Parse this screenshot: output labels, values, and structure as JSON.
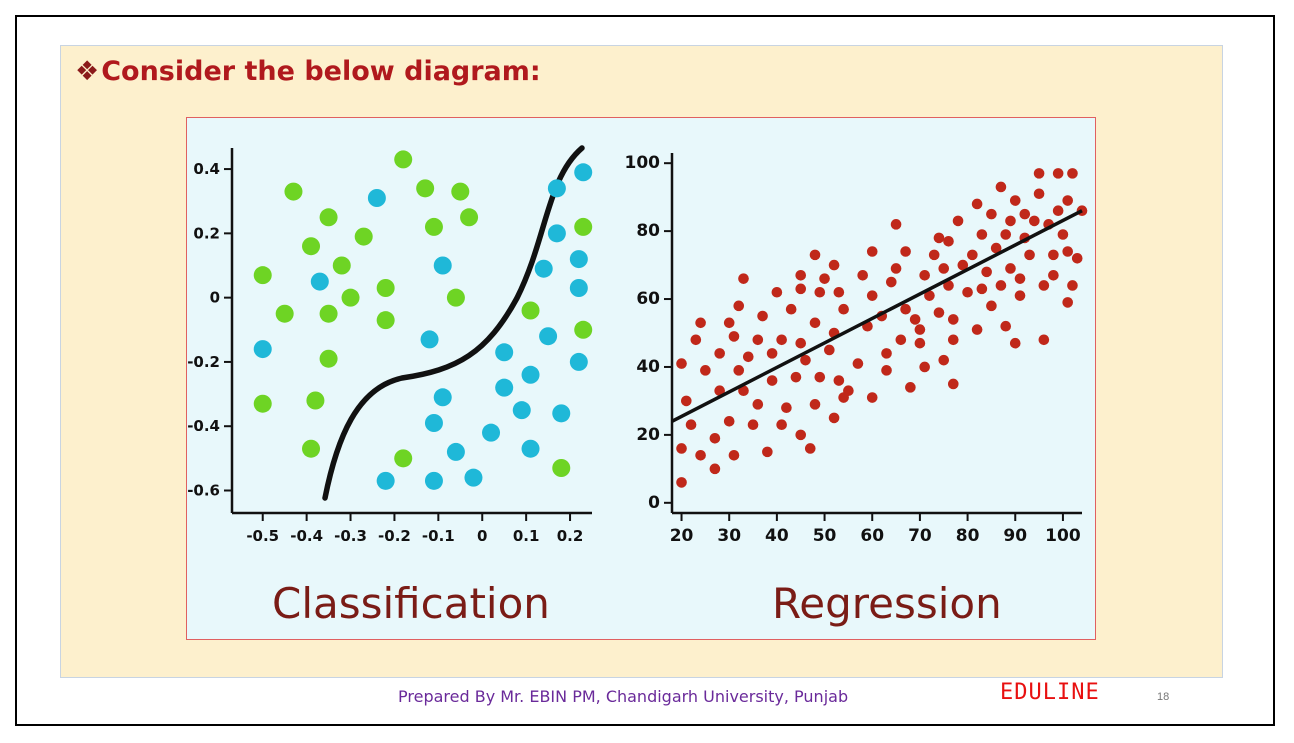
{
  "slide": {
    "bullet": "❖",
    "heading": "Consider the below diagram:",
    "footer": "Prepared By Mr. EBIN PM, Chandigarh University, Punjab",
    "brand": "EDULINE",
    "page_number": "18"
  },
  "chart_data": [
    {
      "type": "scatter",
      "caption": "Classification",
      "xlim": [
        -0.57,
        0.25
      ],
      "ylim": [
        -0.67,
        0.45
      ],
      "xticks": [
        "-0.5",
        "-0.4",
        "-0.3",
        "-0.2",
        "-0.1",
        "0",
        "0.1",
        "0.2"
      ],
      "xtick_values": [
        -0.5,
        -0.4,
        -0.3,
        -0.2,
        -0.1,
        0,
        0.1,
        0.2
      ],
      "yticks": [
        "0.4",
        "0.2",
        "0",
        "-0.2",
        "-0.4",
        "-0.6"
      ],
      "ytick_values": [
        0.4,
        0.2,
        0,
        -0.2,
        -0.4,
        -0.6
      ],
      "grid": false,
      "colors": {
        "class_a": "#6ed424",
        "class_b": "#1fb8d8",
        "boundary": "#111111"
      },
      "series": [
        {
          "color": "#6ed424",
          "points": [
            [
              -0.18,
              0.43
            ],
            [
              -0.43,
              0.33
            ],
            [
              -0.13,
              0.34
            ],
            [
              -0.05,
              0.33
            ],
            [
              -0.35,
              0.25
            ],
            [
              -0.11,
              0.22
            ],
            [
              -0.03,
              0.25
            ],
            [
              -0.39,
              0.16
            ],
            [
              -0.27,
              0.19
            ],
            [
              -0.5,
              0.07
            ],
            [
              -0.32,
              0.1
            ],
            [
              -0.3,
              0.0
            ],
            [
              -0.22,
              0.03
            ],
            [
              -0.06,
              0.0
            ],
            [
              -0.45,
              -0.05
            ],
            [
              -0.35,
              -0.05
            ],
            [
              -0.22,
              -0.07
            ],
            [
              0.11,
              -0.04
            ],
            [
              -0.35,
              -0.19
            ],
            [
              -0.5,
              -0.33
            ],
            [
              -0.38,
              -0.32
            ],
            [
              -0.39,
              -0.47
            ],
            [
              -0.18,
              -0.5
            ],
            [
              0.23,
              0.22
            ],
            [
              0.23,
              -0.1
            ],
            [
              0.18,
              -0.53
            ]
          ]
        },
        {
          "color": "#1fb8d8",
          "points": [
            [
              -0.24,
              0.31
            ],
            [
              0.23,
              0.39
            ],
            [
              0.17,
              0.34
            ],
            [
              0.17,
              0.2
            ],
            [
              -0.09,
              0.1
            ],
            [
              0.14,
              0.09
            ],
            [
              0.22,
              0.12
            ],
            [
              -0.37,
              0.05
            ],
            [
              0.22,
              0.03
            ],
            [
              -0.5,
              -0.16
            ],
            [
              -0.12,
              -0.13
            ],
            [
              0.05,
              -0.17
            ],
            [
              0.15,
              -0.12
            ],
            [
              0.22,
              -0.2
            ],
            [
              0.11,
              -0.24
            ],
            [
              0.05,
              -0.28
            ],
            [
              -0.09,
              -0.31
            ],
            [
              0.09,
              -0.35
            ],
            [
              0.18,
              -0.36
            ],
            [
              -0.11,
              -0.39
            ],
            [
              0.02,
              -0.42
            ],
            [
              0.11,
              -0.47
            ],
            [
              -0.06,
              -0.48
            ],
            [
              -0.22,
              -0.57
            ],
            [
              -0.11,
              -0.57
            ],
            [
              -0.02,
              -0.56
            ]
          ]
        }
      ]
    },
    {
      "type": "scatter",
      "caption": "Regression",
      "xlim": [
        18,
        104
      ],
      "ylim": [
        -3,
        103
      ],
      "xticks": [
        "20",
        "30",
        "40",
        "50",
        "60",
        "70",
        "80",
        "90",
        "100"
      ],
      "xtick_values": [
        20,
        30,
        40,
        50,
        60,
        70,
        80,
        90,
        100
      ],
      "yticks": [
        "100",
        "80",
        "60",
        "40",
        "20",
        "0"
      ],
      "ytick_values": [
        100,
        80,
        60,
        40,
        20,
        0
      ],
      "grid": false,
      "colors": {
        "points": "#c0281a",
        "fit_line": "#111111"
      },
      "fit_line": [
        [
          18,
          24
        ],
        [
          104,
          86
        ]
      ],
      "series": [
        {
          "color": "#c0281a",
          "points": [
            [
              20,
              6
            ],
            [
              20,
              16
            ],
            [
              20,
              41
            ],
            [
              21,
              30
            ],
            [
              22,
              23
            ],
            [
              23,
              48
            ],
            [
              24,
              53
            ],
            [
              24,
              14
            ],
            [
              25,
              39
            ],
            [
              27,
              10
            ],
            [
              27,
              19
            ],
            [
              28,
              33
            ],
            [
              28,
              44
            ],
            [
              30,
              53
            ],
            [
              30,
              24
            ],
            [
              31,
              49
            ],
            [
              31,
              14
            ],
            [
              32,
              58
            ],
            [
              32,
              39
            ],
            [
              33,
              33
            ],
            [
              33,
              66
            ],
            [
              34,
              43
            ],
            [
              35,
              23
            ],
            [
              36,
              29
            ],
            [
              36,
              48
            ],
            [
              37,
              55
            ],
            [
              38,
              15
            ],
            [
              39,
              44
            ],
            [
              39,
              36
            ],
            [
              40,
              62
            ],
            [
              41,
              23
            ],
            [
              41,
              48
            ],
            [
              42,
              28
            ],
            [
              43,
              57
            ],
            [
              44,
              37
            ],
            [
              45,
              67
            ],
            [
              45,
              63
            ],
            [
              45,
              47
            ],
            [
              45,
              20
            ],
            [
              46,
              42
            ],
            [
              47,
              16
            ],
            [
              48,
              73
            ],
            [
              48,
              53
            ],
            [
              48,
              29
            ],
            [
              49,
              37
            ],
            [
              49,
              62
            ],
            [
              50,
              66
            ],
            [
              51,
              45
            ],
            [
              52,
              70
            ],
            [
              52,
              25
            ],
            [
              52,
              50
            ],
            [
              53,
              62
            ],
            [
              53,
              36
            ],
            [
              54,
              57
            ],
            [
              54,
              31
            ],
            [
              55,
              33
            ],
            [
              57,
              41
            ],
            [
              58,
              67
            ],
            [
              59,
              52
            ],
            [
              60,
              74
            ],
            [
              60,
              61
            ],
            [
              60,
              31
            ],
            [
              62,
              55
            ],
            [
              63,
              44
            ],
            [
              63,
              39
            ],
            [
              64,
              65
            ],
            [
              65,
              69
            ],
            [
              65,
              82
            ],
            [
              66,
              48
            ],
            [
              67,
              57
            ],
            [
              67,
              74
            ],
            [
              68,
              34
            ],
            [
              69,
              54
            ],
            [
              70,
              47
            ],
            [
              70,
              51
            ],
            [
              71,
              67
            ],
            [
              71,
              40
            ],
            [
              72,
              61
            ],
            [
              73,
              73
            ],
            [
              74,
              78
            ],
            [
              74,
              56
            ],
            [
              75,
              42
            ],
            [
              75,
              69
            ],
            [
              76,
              64
            ],
            [
              76,
              77
            ],
            [
              77,
              54
            ],
            [
              77,
              48
            ],
            [
              77,
              35
            ],
            [
              78,
              83
            ],
            [
              79,
              70
            ],
            [
              80,
              62
            ],
            [
              81,
              73
            ],
            [
              82,
              88
            ],
            [
              82,
              51
            ],
            [
              83,
              79
            ],
            [
              83,
              63
            ],
            [
              84,
              68
            ],
            [
              85,
              58
            ],
            [
              85,
              85
            ],
            [
              86,
              75
            ],
            [
              87,
              93
            ],
            [
              87,
              64
            ],
            [
              88,
              52
            ],
            [
              88,
              79
            ],
            [
              89,
              83
            ],
            [
              89,
              69
            ],
            [
              90,
              47
            ],
            [
              90,
              89
            ],
            [
              91,
              61
            ],
            [
              91,
              66
            ],
            [
              92,
              85
            ],
            [
              92,
              78
            ],
            [
              93,
              73
            ],
            [
              94,
              83
            ],
            [
              95,
              97
            ],
            [
              95,
              91
            ],
            [
              96,
              48
            ],
            [
              96,
              64
            ],
            [
              97,
              82
            ],
            [
              98,
              67
            ],
            [
              98,
              73
            ],
            [
              99,
              97
            ],
            [
              99,
              86
            ],
            [
              100,
              79
            ],
            [
              101,
              59
            ],
            [
              101,
              74
            ],
            [
              101,
              89
            ],
            [
              102,
              97
            ],
            [
              102,
              64
            ],
            [
              103,
              72
            ],
            [
              104,
              86
            ]
          ]
        }
      ]
    }
  ]
}
